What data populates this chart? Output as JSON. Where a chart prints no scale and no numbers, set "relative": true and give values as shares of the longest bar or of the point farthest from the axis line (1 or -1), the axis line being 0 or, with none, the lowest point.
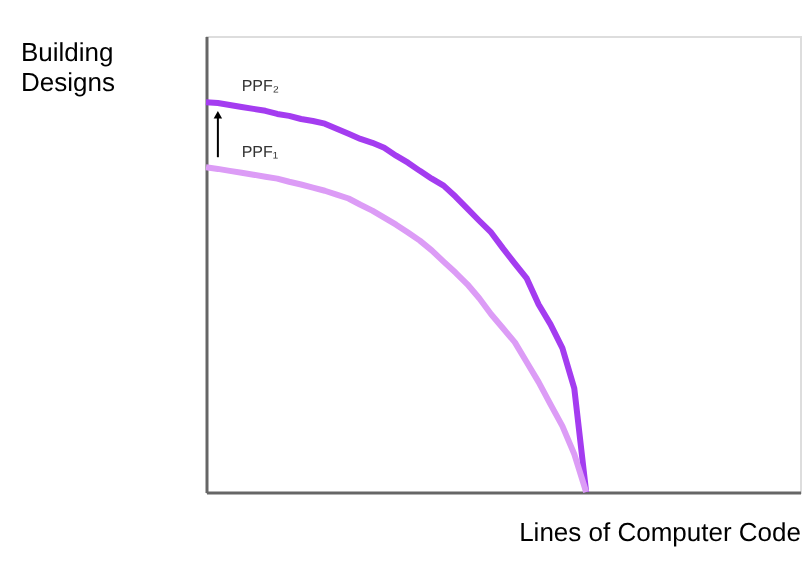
{
  "chart_data": {
    "type": "line",
    "relative": true,
    "xlabel": "Lines of Computer Code",
    "ylabel": "Building Designs",
    "grid": false,
    "marker": "none",
    "line_style": "solid",
    "categories": [
      null,
      null,
      null,
      null,
      null,
      null,
      null,
      null,
      null,
      null,
      null,
      null,
      null,
      null,
      null,
      null,
      null,
      null,
      null,
      null,
      null,
      null,
      null,
      null,
      null,
      null,
      null,
      null,
      null,
      null,
      null,
      null,
      null,
      null,
      null,
      null,
      null,
      null,
      null,
      null,
      null,
      null,
      null,
      null,
      null,
      null,
      null,
      null,
      null,
      null,
      null
    ],
    "series": [
      {
        "name": "PPF₂",
        "color": "#a43cf0",
        "values": [
          1.0,
          0.998,
          0.993,
          0.988,
          0.983,
          0.978,
          0.97,
          0.965,
          0.957,
          0.952,
          0.945,
          0.932,
          0.919,
          0.906,
          0.896,
          0.883,
          0.863,
          0.845,
          0.824,
          0.804,
          0.786,
          0.758,
          0.727,
          0.696,
          0.666,
          0.625,
          0.586,
          0.548,
          0.481,
          0.43,
          0.369,
          0.266,
          0,
          null,
          null,
          null,
          null,
          null,
          null,
          null,
          null,
          null,
          null,
          null,
          null,
          null,
          null,
          null,
          null,
          null,
          null
        ]
      },
      {
        "name": "PPF₁",
        "color": "#dc9cf6",
        "values": [
          0.833,
          0.829,
          0.824,
          0.819,
          0.814,
          0.809,
          0.804,
          0.796,
          0.789,
          0.781,
          0.773,
          0.763,
          0.753,
          0.737,
          0.722,
          0.704,
          0.686,
          0.666,
          0.645,
          0.62,
          0.591,
          0.563,
          0.533,
          0.497,
          0.456,
          0.42,
          0.384,
          0.333,
          0.282,
          0.225,
          0.169,
          0.097,
          0,
          null,
          null,
          null,
          null,
          null,
          null,
          null,
          null,
          null,
          null,
          null,
          null,
          null,
          null,
          null,
          null,
          null,
          null
        ]
      }
    ]
  }
}
